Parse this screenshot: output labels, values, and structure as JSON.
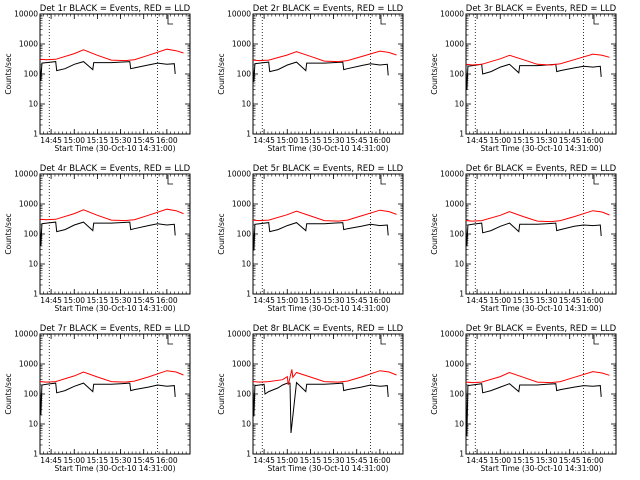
{
  "chart_data": [
    {
      "type": "line",
      "title": "Det 1r BLACK = Events, RED = LLD",
      "xlabel": "Start Time (30-Oct-10 14:31:00)",
      "ylabel": "Counts/sec",
      "xlim": [
        14.63,
        16.25
      ],
      "ylim": [
        1,
        10000
      ],
      "yscale": "log",
      "grid": false,
      "x_ticks": [
        "14:45",
        "15:00",
        "15:15",
        "15:30",
        "15:45",
        "16:00"
      ],
      "y_ticks": [
        "1",
        "10",
        "100",
        "1000",
        "10000"
      ],
      "vlines": [
        14.73,
        15.9
      ],
      "series": [
        {
          "name": "LLD",
          "color": "#ff0000",
          "x": [
            14.57,
            14.7,
            14.8,
            15.0,
            15.1,
            15.25,
            15.4,
            15.55,
            15.65,
            15.8,
            16.0,
            16.1,
            16.18
          ],
          "y": [
            320,
            300,
            310,
            480,
            640,
            420,
            290,
            280,
            300,
            420,
            670,
            600,
            500
          ]
        },
        {
          "name": "Events",
          "color": "#000000",
          "x": [
            14.57,
            14.63,
            14.64,
            14.65,
            14.7,
            14.8,
            14.81,
            14.9,
            15.0,
            15.1,
            15.2,
            15.21,
            15.4,
            15.5,
            15.6,
            15.61,
            15.65,
            15.8,
            15.9,
            16.0,
            16.08,
            16.09
          ],
          "y": [
            180,
            200,
            60,
            230,
            240,
            260,
            130,
            150,
            210,
            260,
            140,
            240,
            240,
            250,
            260,
            150,
            160,
            200,
            230,
            210,
            220,
            100
          ]
        }
      ]
    },
    {
      "type": "line",
      "title": "Det 2r BLACK = Events, RED = LLD",
      "xlabel": "Start Time (30-Oct-10 14:31:00)",
      "ylabel": "Counts/sec",
      "xlim": [
        14.63,
        16.25
      ],
      "ylim": [
        1,
        10000
      ],
      "yscale": "log",
      "grid": false,
      "x_ticks": [
        "14:45",
        "15:00",
        "15:15",
        "15:30",
        "15:45",
        "16:00"
      ],
      "y_ticks": [
        "1",
        "10",
        "100",
        "1000",
        "10000"
      ],
      "vlines": [
        14.73,
        15.9
      ],
      "series": [
        {
          "name": "LLD",
          "color": "#ff0000",
          "x": [
            14.57,
            14.7,
            14.8,
            15.0,
            15.1,
            15.25,
            15.4,
            15.55,
            15.65,
            15.8,
            16.0,
            16.1,
            16.18
          ],
          "y": [
            300,
            280,
            290,
            430,
            560,
            390,
            270,
            260,
            280,
            380,
            580,
            520,
            430
          ]
        },
        {
          "name": "Events",
          "color": "#000000",
          "x": [
            14.57,
            14.63,
            14.64,
            14.65,
            14.7,
            14.8,
            14.81,
            14.9,
            15.0,
            15.1,
            15.2,
            15.21,
            15.4,
            15.5,
            15.6,
            15.61,
            15.65,
            15.8,
            15.9,
            16.0,
            16.08,
            16.09
          ],
          "y": [
            170,
            190,
            55,
            220,
            230,
            250,
            120,
            140,
            200,
            250,
            130,
            230,
            230,
            240,
            250,
            140,
            150,
            190,
            220,
            200,
            210,
            90
          ]
        }
      ]
    },
    {
      "type": "line",
      "title": "Det 3r BLACK = Events, RED = LLD",
      "xlabel": "Start Time (30-Oct-10 14:31:00)",
      "ylabel": "Counts/sec",
      "xlim": [
        14.63,
        16.25
      ],
      "ylim": [
        1,
        10000
      ],
      "yscale": "log",
      "grid": false,
      "x_ticks": [
        "14:45",
        "15:00",
        "15:15",
        "15:30",
        "15:45",
        "16:00"
      ],
      "y_ticks": [
        "1",
        "10",
        "100",
        "1000",
        "10000"
      ],
      "vlines": [
        14.73,
        15.9
      ],
      "series": [
        {
          "name": "LLD",
          "color": "#ff0000",
          "x": [
            14.57,
            14.7,
            14.8,
            15.0,
            15.1,
            15.25,
            15.4,
            15.55,
            15.65,
            15.8,
            16.0,
            16.1,
            16.18
          ],
          "y": [
            220,
            200,
            210,
            320,
            420,
            300,
            210,
            200,
            220,
            300,
            460,
            420,
            360
          ]
        },
        {
          "name": "Events",
          "color": "#000000",
          "x": [
            14.57,
            14.63,
            14.64,
            14.65,
            14.7,
            14.8,
            14.81,
            14.9,
            15.0,
            15.1,
            15.2,
            15.21,
            15.4,
            15.5,
            15.6,
            15.61,
            15.65,
            15.8,
            15.9,
            16.0,
            16.08,
            16.09
          ],
          "y": [
            140,
            160,
            30,
            180,
            190,
            210,
            100,
            120,
            170,
            210,
            110,
            190,
            190,
            200,
            210,
            120,
            130,
            160,
            180,
            170,
            180,
            80
          ]
        }
      ]
    },
    {
      "type": "line",
      "title": "Det 4r BLACK = Events, RED = LLD",
      "xlabel": "Start Time (30-Oct-10 14:31:00)",
      "ylabel": "Counts/sec",
      "xlim": [
        14.63,
        16.25
      ],
      "ylim": [
        1,
        10000
      ],
      "yscale": "log",
      "grid": false,
      "x_ticks": [
        "14:45",
        "15:00",
        "15:15",
        "15:30",
        "15:45",
        "16:00"
      ],
      "y_ticks": [
        "1",
        "10",
        "100",
        "1000",
        "10000"
      ],
      "vlines": [
        14.73,
        15.9
      ],
      "series": [
        {
          "name": "LLD",
          "color": "#ff0000",
          "x": [
            14.57,
            14.7,
            14.8,
            15.0,
            15.1,
            15.25,
            15.4,
            15.55,
            15.65,
            15.8,
            16.0,
            16.1,
            16.18
          ],
          "y": [
            320,
            300,
            310,
            480,
            640,
            420,
            290,
            280,
            300,
            420,
            670,
            600,
            480
          ]
        },
        {
          "name": "Events",
          "color": "#000000",
          "x": [
            14.57,
            14.63,
            14.64,
            14.65,
            14.7,
            14.8,
            14.81,
            14.9,
            15.0,
            15.1,
            15.2,
            15.21,
            15.4,
            15.5,
            15.6,
            15.61,
            15.65,
            15.8,
            15.9,
            16.0,
            16.08,
            16.09
          ],
          "y": [
            170,
            190,
            40,
            220,
            230,
            250,
            120,
            140,
            200,
            250,
            130,
            230,
            230,
            240,
            250,
            140,
            150,
            190,
            220,
            200,
            210,
            90
          ]
        }
      ]
    },
    {
      "type": "line",
      "title": "Det 5r BLACK = Events, RED = LLD",
      "xlabel": "Start Time (30-Oct-10 14:31:00)",
      "ylabel": "Counts/sec",
      "xlim": [
        14.63,
        16.25
      ],
      "ylim": [
        1,
        10000
      ],
      "yscale": "log",
      "grid": false,
      "x_ticks": [
        "14:45",
        "15:00",
        "15:15",
        "15:30",
        "15:45",
        "16:00"
      ],
      "y_ticks": [
        "1",
        "10",
        "100",
        "1000",
        "10000"
      ],
      "vlines": [
        14.73,
        15.9
      ],
      "series": [
        {
          "name": "LLD",
          "color": "#ff0000",
          "x": [
            14.57,
            14.7,
            14.8,
            15.0,
            15.1,
            15.25,
            15.4,
            15.55,
            15.65,
            15.8,
            16.0,
            16.1,
            16.18
          ],
          "y": [
            300,
            280,
            290,
            440,
            580,
            400,
            280,
            270,
            290,
            400,
            620,
            560,
            450
          ]
        },
        {
          "name": "Events",
          "color": "#000000",
          "x": [
            14.57,
            14.63,
            14.64,
            14.65,
            14.7,
            14.8,
            14.81,
            14.9,
            15.0,
            15.1,
            15.2,
            15.21,
            15.4,
            15.5,
            15.6,
            15.61,
            15.65,
            15.8,
            15.9,
            16.0,
            16.08,
            16.09
          ],
          "y": [
            160,
            180,
            28,
            210,
            220,
            240,
            120,
            140,
            190,
            240,
            130,
            220,
            220,
            230,
            240,
            140,
            150,
            180,
            210,
            190,
            200,
            90
          ]
        }
      ]
    },
    {
      "type": "line",
      "title": "Det 6r BLACK = Events, RED = LLD",
      "xlabel": "Start Time (30-Oct-10 14:31:00)",
      "ylabel": "Counts/sec",
      "xlim": [
        14.63,
        16.25
      ],
      "ylim": [
        1,
        10000
      ],
      "yscale": "log",
      "grid": false,
      "x_ticks": [
        "14:45",
        "15:00",
        "15:15",
        "15:30",
        "15:45",
        "16:00"
      ],
      "y_ticks": [
        "1",
        "10",
        "100",
        "1000",
        "10000"
      ],
      "vlines": [
        14.73,
        15.9
      ],
      "series": [
        {
          "name": "LLD",
          "color": "#ff0000",
          "x": [
            14.57,
            14.7,
            14.8,
            15.0,
            15.1,
            15.25,
            15.4,
            15.55,
            15.65,
            15.8,
            16.0,
            16.1,
            16.18
          ],
          "y": [
            290,
            270,
            280,
            420,
            560,
            380,
            270,
            260,
            280,
            380,
            600,
            540,
            430
          ]
        },
        {
          "name": "Events",
          "color": "#000000",
          "x": [
            14.57,
            14.63,
            14.64,
            14.65,
            14.7,
            14.8,
            14.81,
            14.9,
            15.0,
            15.1,
            15.2,
            15.21,
            15.4,
            15.5,
            15.6,
            15.61,
            15.65,
            15.8,
            15.9,
            16.0,
            16.08,
            16.09
          ],
          "y": [
            160,
            180,
            40,
            200,
            210,
            230,
            110,
            130,
            180,
            230,
            120,
            210,
            210,
            220,
            230,
            130,
            140,
            180,
            200,
            190,
            200,
            85
          ]
        }
      ]
    },
    {
      "type": "line",
      "title": "Det 7r BLACK = Events, RED = LLD",
      "xlabel": "Start Time (30-Oct-10 14:31:00)",
      "ylabel": "Counts/sec",
      "xlim": [
        14.63,
        16.25
      ],
      "ylim": [
        1,
        10000
      ],
      "yscale": "log",
      "grid": false,
      "x_ticks": [
        "14:45",
        "15:00",
        "15:15",
        "15:30",
        "15:45",
        "16:00"
      ],
      "y_ticks": [
        "1",
        "10",
        "100",
        "1000",
        "10000"
      ],
      "vlines": [
        14.73,
        15.9
      ],
      "series": [
        {
          "name": "LLD",
          "color": "#ff0000",
          "x": [
            14.57,
            14.7,
            14.8,
            15.0,
            15.1,
            15.25,
            15.4,
            15.55,
            15.65,
            15.8,
            16.0,
            16.1,
            16.18
          ],
          "y": [
            270,
            250,
            260,
            400,
            540,
            370,
            260,
            250,
            270,
            370,
            600,
            540,
            430
          ]
        },
        {
          "name": "Events",
          "color": "#000000",
          "x": [
            14.57,
            14.63,
            14.64,
            14.65,
            14.7,
            14.8,
            14.81,
            14.9,
            15.0,
            15.1,
            15.2,
            15.21,
            15.4,
            15.5,
            15.6,
            15.61,
            15.65,
            15.8,
            15.9,
            16.0,
            16.08,
            16.09
          ],
          "y": [
            150,
            170,
            20,
            200,
            210,
            230,
            110,
            130,
            180,
            230,
            120,
            210,
            210,
            220,
            230,
            130,
            140,
            170,
            200,
            180,
            190,
            80
          ]
        }
      ]
    },
    {
      "type": "line",
      "title": "Det 8r BLACK = Events, RED = LLD",
      "xlabel": "Start Time (30-Oct-10 14:31:00)",
      "ylabel": "Counts/sec",
      "xlim": [
        14.63,
        16.25
      ],
      "ylim": [
        1,
        10000
      ],
      "yscale": "log",
      "grid": false,
      "x_ticks": [
        "14:45",
        "15:00",
        "15:15",
        "15:30",
        "15:45",
        "16:00"
      ],
      "y_ticks": [
        "1",
        "10",
        "100",
        "1000",
        "10000"
      ],
      "vlines": [
        14.73,
        15.9
      ],
      "series": [
        {
          "name": "LLD",
          "color": "#ff0000",
          "x": [
            14.57,
            14.7,
            14.8,
            14.95,
            15.0,
            15.01,
            15.05,
            15.06,
            15.1,
            15.25,
            15.4,
            15.55,
            15.65,
            15.8,
            16.0,
            16.1,
            16.18
          ],
          "y": [
            270,
            250,
            260,
            300,
            380,
            200,
            660,
            360,
            520,
            370,
            260,
            250,
            270,
            370,
            600,
            540,
            430
          ]
        },
        {
          "name": "Events",
          "color": "#000000",
          "x": [
            14.57,
            14.63,
            14.64,
            14.65,
            14.7,
            14.75,
            14.76,
            14.8,
            14.9,
            14.95,
            15.0,
            15.03,
            15.04,
            15.1,
            15.2,
            15.21,
            15.4,
            15.5,
            15.6,
            15.61,
            15.65,
            15.8,
            15.9,
            16.0,
            16.08,
            16.09
          ],
          "y": [
            150,
            170,
            18,
            190,
            200,
            210,
            100,
            120,
            160,
            200,
            230,
            230,
            5,
            240,
            120,
            210,
            210,
            220,
            230,
            130,
            140,
            170,
            200,
            180,
            190,
            80
          ]
        }
      ]
    },
    {
      "type": "line",
      "title": "Det 9r BLACK = Events, RED = LLD",
      "xlabel": "Start Time (30-Oct-10 14:31:00)",
      "ylabel": "Counts/sec",
      "xlim": [
        14.63,
        16.25
      ],
      "ylim": [
        1,
        10000
      ],
      "yscale": "log",
      "grid": false,
      "x_ticks": [
        "14:45",
        "15:00",
        "15:15",
        "15:30",
        "15:45",
        "16:00"
      ],
      "y_ticks": [
        "1",
        "10",
        "100",
        "1000",
        "10000"
      ],
      "vlines": [
        14.73,
        15.9
      ],
      "series": [
        {
          "name": "LLD",
          "color": "#ff0000",
          "x": [
            14.57,
            14.7,
            14.8,
            15.0,
            15.1,
            15.25,
            15.4,
            15.55,
            15.65,
            15.8,
            16.0,
            16.1,
            16.18
          ],
          "y": [
            260,
            240,
            250,
            380,
            520,
            360,
            250,
            240,
            260,
            360,
            560,
            500,
            420
          ]
        },
        {
          "name": "Events",
          "color": "#000000",
          "x": [
            14.57,
            14.63,
            14.64,
            14.65,
            14.7,
            14.8,
            14.81,
            14.9,
            15.0,
            15.1,
            15.2,
            15.21,
            15.4,
            15.5,
            15.6,
            15.61,
            15.65,
            15.8,
            15.9,
            16.0,
            16.08,
            16.09
          ],
          "y": [
            150,
            170,
            4,
            190,
            200,
            220,
            110,
            130,
            170,
            220,
            120,
            200,
            200,
            210,
            220,
            130,
            140,
            170,
            190,
            180,
            190,
            80
          ]
        }
      ]
    }
  ]
}
